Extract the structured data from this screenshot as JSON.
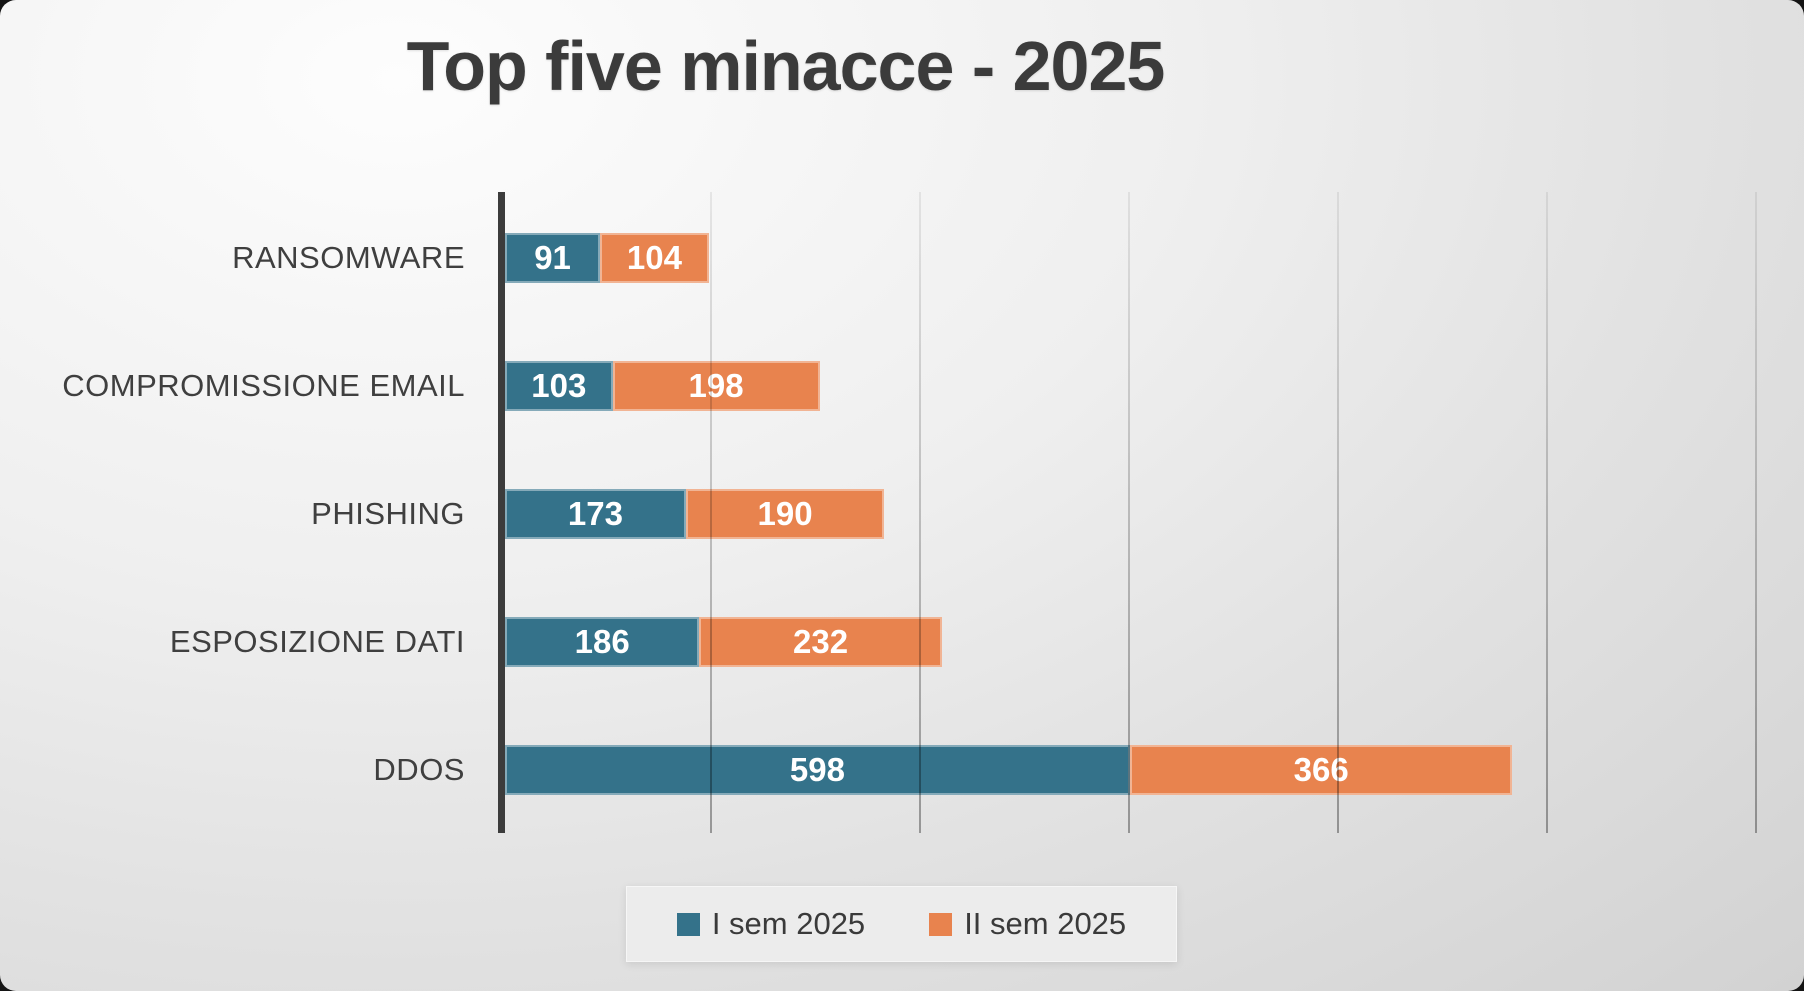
{
  "chart_data": {
    "type": "bar",
    "orientation": "horizontal",
    "stacked": true,
    "title": "Top five minacce - 2025",
    "categories": [
      "RANSOMWARE",
      "COMPROMISSIONE EMAIL",
      "PHISHING",
      "ESPOSIZIONE DATI",
      "DDOS"
    ],
    "series": [
      {
        "name": "I sem 2025",
        "color": "#34728A",
        "values": [
          91,
          103,
          173,
          186,
          598
        ]
      },
      {
        "name": "II sem 2025",
        "color": "#E8834E",
        "values": [
          104,
          198,
          190,
          232,
          366
        ]
      }
    ],
    "xlim": [
      0,
      1250
    ],
    "gridline_step": 200,
    "grid": true,
    "legend_position": "bottom",
    "value_labels": "inside, white bold"
  },
  "colors": {
    "title_text": "#3B3B3B",
    "category_text": "#3F3F3F",
    "value_text": "#FFFFFF",
    "axis_line": "#3C3C3C",
    "background_light": "#FDFDFD",
    "background_dark": "#D2D2D2",
    "legend_box": "#ECECEC"
  }
}
